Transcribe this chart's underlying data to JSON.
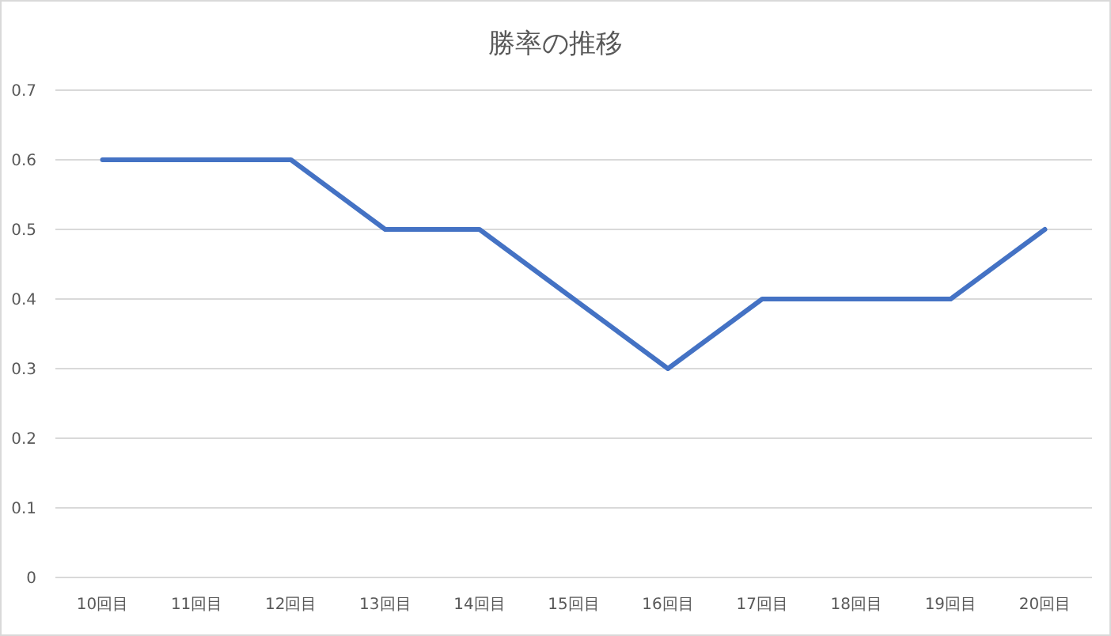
{
  "chart_data": {
    "type": "line",
    "title": "勝率の推移",
    "categories": [
      "10回目",
      "11回目",
      "12回目",
      "13回目",
      "14回目",
      "15回目",
      "16回目",
      "17回目",
      "18回目",
      "19回目",
      "20回目"
    ],
    "series": [
      {
        "color": "#4472c4",
        "values": [
          0.6,
          0.6,
          0.6,
          0.5,
          0.5,
          0.4,
          0.3,
          0.4,
          0.4,
          0.4,
          0.5
        ]
      }
    ],
    "ylim": [
      0,
      0.7
    ],
    "yticks": [
      0,
      0.1,
      0.2,
      0.3,
      0.4,
      0.5,
      0.6,
      0.7
    ],
    "grid": "y",
    "marker": "none",
    "line_style": "solid"
  }
}
